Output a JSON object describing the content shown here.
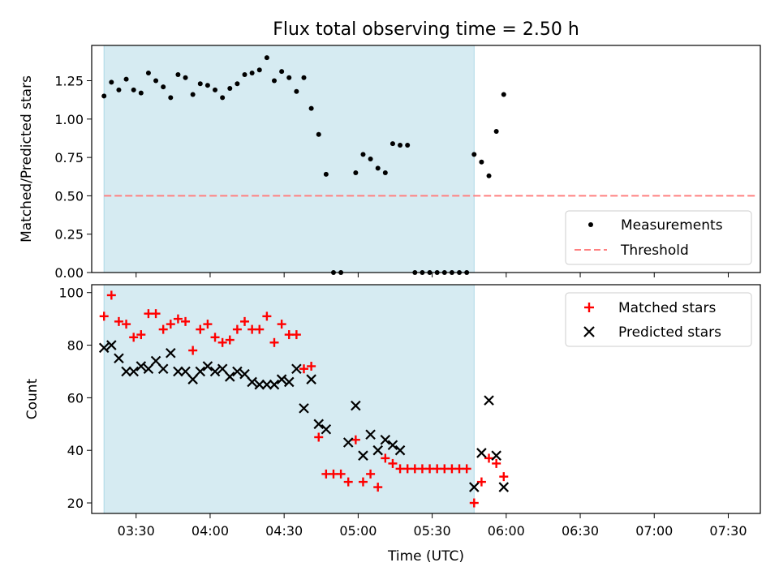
{
  "chart_data": [
    {
      "type": "scatter",
      "title": "Flux total observing time = 2.50 h",
      "xlabel": "",
      "ylabel": "Matched/Predicted stars",
      "xlim": [
        "03:12",
        "07:43"
      ],
      "ylim": [
        0,
        1.48
      ],
      "yticks": [
        "0.00",
        "0.25",
        "0.50",
        "0.75",
        "1.00",
        "1.25"
      ],
      "highlight_span": {
        "x_start": "03:17",
        "x_end": "05:47",
        "color": "#add8e6"
      },
      "legend_position": "lower right",
      "series": [
        {
          "name": "Measurements",
          "marker": "dot",
          "color": "#000000",
          "points": [
            [
              "03:17",
              1.15
            ],
            [
              "03:20",
              1.24
            ],
            [
              "03:23",
              1.19
            ],
            [
              "03:26",
              1.26
            ],
            [
              "03:29",
              1.19
            ],
            [
              "03:32",
              1.17
            ],
            [
              "03:35",
              1.3
            ],
            [
              "03:38",
              1.25
            ],
            [
              "03:41",
              1.21
            ],
            [
              "03:44",
              1.14
            ],
            [
              "03:47",
              1.29
            ],
            [
              "03:50",
              1.27
            ],
            [
              "03:53",
              1.16
            ],
            [
              "03:56",
              1.23
            ],
            [
              "03:59",
              1.22
            ],
            [
              "04:02",
              1.19
            ],
            [
              "04:05",
              1.14
            ],
            [
              "04:08",
              1.2
            ],
            [
              "04:11",
              1.23
            ],
            [
              "04:14",
              1.29
            ],
            [
              "04:17",
              1.3
            ],
            [
              "04:20",
              1.32
            ],
            [
              "04:23",
              1.4
            ],
            [
              "04:26",
              1.25
            ],
            [
              "04:29",
              1.31
            ],
            [
              "04:32",
              1.27
            ],
            [
              "04:35",
              1.18
            ],
            [
              "04:38",
              1.27
            ],
            [
              "04:41",
              1.07
            ],
            [
              "04:44",
              0.9
            ],
            [
              "04:47",
              0.64
            ],
            [
              "04:50",
              0.0
            ],
            [
              "04:53",
              0.0
            ],
            [
              "04:59",
              0.65
            ],
            [
              "05:02",
              0.77
            ],
            [
              "05:05",
              0.74
            ],
            [
              "05:08",
              0.68
            ],
            [
              "05:11",
              0.65
            ],
            [
              "05:14",
              0.84
            ],
            [
              "05:17",
              0.83
            ],
            [
              "05:20",
              0.83
            ],
            [
              "05:23",
              0.0
            ],
            [
              "05:26",
              0.0
            ],
            [
              "05:29",
              0.0
            ],
            [
              "05:32",
              0.0
            ],
            [
              "05:35",
              0.0
            ],
            [
              "05:38",
              0.0
            ],
            [
              "05:41",
              0.0
            ],
            [
              "05:44",
              0.0
            ],
            [
              "05:47",
              0.77
            ],
            [
              "05:50",
              0.72
            ],
            [
              "05:53",
              0.63
            ],
            [
              "05:56",
              0.92
            ],
            [
              "05:59",
              1.16
            ]
          ]
        },
        {
          "name": "Threshold",
          "marker": "dashed-line",
          "color": "#ff8080",
          "points": [
            [
              "03:17",
              0.5
            ],
            [
              "07:41",
              0.5
            ]
          ]
        }
      ]
    },
    {
      "type": "scatter",
      "title": "",
      "xlabel": "Time (UTC)",
      "ylabel": "Count",
      "xlim": [
        "03:12",
        "07:43"
      ],
      "ylim": [
        16,
        103
      ],
      "xticks": [
        "03:30",
        "04:00",
        "04:30",
        "05:00",
        "05:30",
        "06:00",
        "06:30",
        "07:00",
        "07:30"
      ],
      "yticks": [
        "20",
        "40",
        "60",
        "80",
        "100"
      ],
      "highlight_span": {
        "x_start": "03:17",
        "x_end": "05:47",
        "color": "#add8e6"
      },
      "legend_position": "upper right",
      "series": [
        {
          "name": "Matched stars",
          "marker": "plus",
          "color": "#ff0000",
          "points": [
            [
              "03:17",
              91
            ],
            [
              "03:20",
              99
            ],
            [
              "03:23",
              89
            ],
            [
              "03:26",
              88
            ],
            [
              "03:29",
              83
            ],
            [
              "03:32",
              84
            ],
            [
              "03:35",
              92
            ],
            [
              "03:38",
              92
            ],
            [
              "03:41",
              86
            ],
            [
              "03:44",
              88
            ],
            [
              "03:47",
              90
            ],
            [
              "03:50",
              89
            ],
            [
              "03:53",
              78
            ],
            [
              "03:56",
              86
            ],
            [
              "03:59",
              88
            ],
            [
              "04:02",
              83
            ],
            [
              "04:05",
              81
            ],
            [
              "04:08",
              82
            ],
            [
              "04:11",
              86
            ],
            [
              "04:14",
              89
            ],
            [
              "04:17",
              86
            ],
            [
              "04:20",
              86
            ],
            [
              "04:23",
              91
            ],
            [
              "04:26",
              81
            ],
            [
              "04:29",
              88
            ],
            [
              "04:32",
              84
            ],
            [
              "04:35",
              84
            ],
            [
              "04:38",
              71
            ],
            [
              "04:41",
              72
            ],
            [
              "04:44",
              45
            ],
            [
              "04:47",
              31
            ],
            [
              "04:50",
              31
            ],
            [
              "04:53",
              31
            ],
            [
              "04:56",
              28
            ],
            [
              "04:59",
              44
            ],
            [
              "05:02",
              28
            ],
            [
              "05:05",
              31
            ],
            [
              "05:08",
              26
            ],
            [
              "05:11",
              37
            ],
            [
              "05:14",
              35
            ],
            [
              "05:17",
              33
            ],
            [
              "05:20",
              33
            ],
            [
              "05:23",
              33
            ],
            [
              "05:26",
              33
            ],
            [
              "05:29",
              33
            ],
            [
              "05:32",
              33
            ],
            [
              "05:35",
              33
            ],
            [
              "05:38",
              33
            ],
            [
              "05:41",
              33
            ],
            [
              "05:44",
              33
            ],
            [
              "05:47",
              20
            ],
            [
              "05:50",
              28
            ],
            [
              "05:53",
              37
            ],
            [
              "05:56",
              35
            ],
            [
              "05:59",
              30
            ]
          ]
        },
        {
          "name": "Predicted stars",
          "marker": "x",
          "color": "#000000",
          "points": [
            [
              "03:17",
              79
            ],
            [
              "03:20",
              80
            ],
            [
              "03:23",
              75
            ],
            [
              "03:26",
              70
            ],
            [
              "03:29",
              70
            ],
            [
              "03:32",
              72
            ],
            [
              "03:35",
              71
            ],
            [
              "03:38",
              74
            ],
            [
              "03:41",
              71
            ],
            [
              "03:44",
              77
            ],
            [
              "03:47",
              70
            ],
            [
              "03:50",
              70
            ],
            [
              "03:53",
              67
            ],
            [
              "03:56",
              70
            ],
            [
              "03:59",
              72
            ],
            [
              "04:02",
              70
            ],
            [
              "04:05",
              71
            ],
            [
              "04:08",
              68
            ],
            [
              "04:11",
              70
            ],
            [
              "04:14",
              69
            ],
            [
              "04:17",
              66
            ],
            [
              "04:20",
              65
            ],
            [
              "04:23",
              65
            ],
            [
              "04:26",
              65
            ],
            [
              "04:29",
              67
            ],
            [
              "04:32",
              66
            ],
            [
              "04:35",
              71
            ],
            [
              "04:38",
              56
            ],
            [
              "04:41",
              67
            ],
            [
              "04:44",
              50
            ],
            [
              "04:47",
              48
            ],
            [
              "04:56",
              43
            ],
            [
              "04:59",
              57
            ],
            [
              "05:02",
              38
            ],
            [
              "05:05",
              46
            ],
            [
              "05:08",
              40
            ],
            [
              "05:11",
              44
            ],
            [
              "05:14",
              42
            ],
            [
              "05:17",
              40
            ],
            [
              "05:47",
              26
            ],
            [
              "05:50",
              39
            ],
            [
              "05:53",
              59
            ],
            [
              "05:56",
              38
            ],
            [
              "05:59",
              26
            ]
          ]
        }
      ]
    }
  ]
}
